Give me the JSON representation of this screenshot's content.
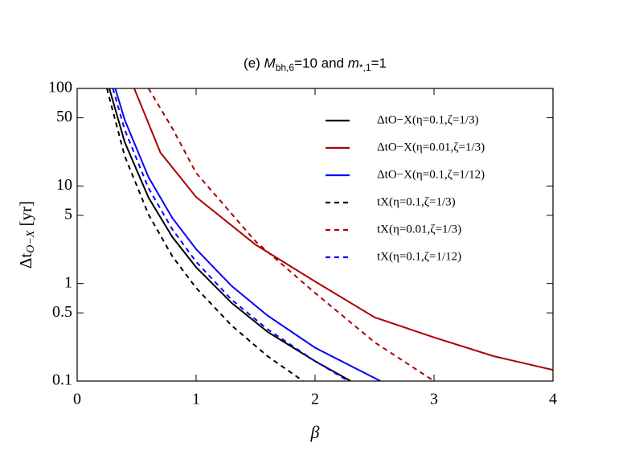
{
  "chart_data": {
    "type": "line",
    "title": [
      "(e) ",
      "M",
      "bh,6",
      "=10 and ",
      "m",
      "*,1",
      "=1"
    ],
    "x_label": "β",
    "y_label": [
      "Δt",
      "O−X",
      " [yr]"
    ],
    "xlim": [
      0,
      4
    ],
    "xticks": [
      0,
      1,
      2,
      3,
      4
    ],
    "ylim": [
      0.1,
      100
    ],
    "yticks": [
      0.1,
      0.5,
      1,
      5,
      10,
      50,
      100
    ],
    "log_y": true,
    "legend": "upper right",
    "series": [
      {
        "name": "ΔtO−X(η=0.1,ζ=1/3)",
        "color": "#000000",
        "dash": false,
        "x": [
          0.27,
          0.4,
          0.6,
          0.8,
          1.0,
          1.3,
          1.6,
          2.0,
          2.3
        ],
        "values": [
          100,
          28.1,
          7.6,
          3.0,
          1.47,
          0.63,
          0.32,
          0.16,
          0.1
        ]
      },
      {
        "name": "ΔtO−X(η=0.01,ζ=1/3)",
        "color": "#aa0000",
        "dash": false,
        "x": [
          0.48,
          0.7,
          1.0,
          1.5,
          2.0,
          2.5,
          3.0,
          3.5,
          4.0
        ],
        "values": [
          100,
          22,
          7.7,
          2.5,
          1.05,
          0.45,
          0.28,
          0.18,
          0.13
        ]
      },
      {
        "name": "ΔtO−X(η=0.1,ζ=1/12)",
        "color": "#0000ff",
        "dash": false,
        "x": [
          0.32,
          0.4,
          0.6,
          0.8,
          1.0,
          1.3,
          1.6,
          2.0,
          2.55
        ],
        "values": [
          100,
          47.5,
          12.3,
          4.7,
          2.25,
          0.94,
          0.47,
          0.22,
          0.1
        ]
      },
      {
        "name": "tX(η=0.1,ζ=1/3)",
        "color": "#000000",
        "dash": true,
        "x": [
          0.25,
          0.4,
          0.6,
          0.8,
          1.0,
          1.3,
          1.6,
          1.9
        ],
        "values": [
          100,
          20.2,
          5.1,
          1.9,
          0.9,
          0.37,
          0.18,
          0.1
        ]
      },
      {
        "name": "tX(η=0.01,ζ=1/3)",
        "color": "#aa0000",
        "dash": true,
        "x": [
          0.6,
          0.8,
          1.0,
          1.5,
          2.0,
          2.5,
          3.0
        ],
        "values": [
          100,
          39,
          13.6,
          2.7,
          0.8,
          0.25,
          0.1
        ]
      },
      {
        "name": "tX(η=0.1,ζ=1/12)",
        "color": "#0000ff",
        "dash": true,
        "x": [
          0.3,
          0.4,
          0.6,
          0.8,
          1.0,
          1.3,
          1.6,
          2.0,
          2.28
        ],
        "values": [
          100,
          37.6,
          9.5,
          3.6,
          1.67,
          0.68,
          0.34,
          0.16,
          0.1
        ]
      }
    ]
  }
}
